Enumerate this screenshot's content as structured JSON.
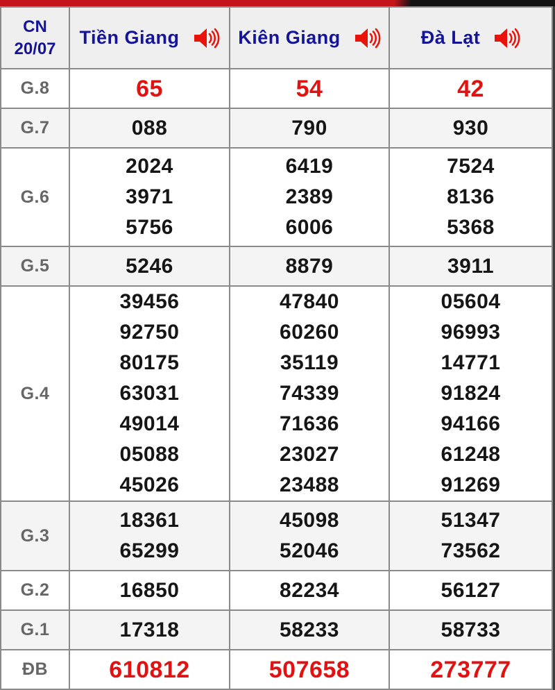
{
  "header": {
    "day": "CN",
    "date": "20/07",
    "columns": [
      {
        "name": "Tiền Giang",
        "icon": "speaker-icon"
      },
      {
        "name": "Kiên Giang",
        "icon": "speaker-icon"
      },
      {
        "name": "Đà Lạt",
        "icon": "speaker-icon"
      }
    ]
  },
  "prizes": [
    {
      "label": "G.8",
      "highlight": true,
      "values": [
        [
          "65"
        ],
        [
          "54"
        ],
        [
          "42"
        ]
      ]
    },
    {
      "label": "G.7",
      "highlight": false,
      "values": [
        [
          "088"
        ],
        [
          "790"
        ],
        [
          "930"
        ]
      ]
    },
    {
      "label": "G.6",
      "highlight": false,
      "values": [
        [
          "2024",
          "3971",
          "5756"
        ],
        [
          "6419",
          "2389",
          "6006"
        ],
        [
          "7524",
          "8136",
          "5368"
        ]
      ]
    },
    {
      "label": "G.5",
      "highlight": false,
      "values": [
        [
          "5246"
        ],
        [
          "8879"
        ],
        [
          "3911"
        ]
      ]
    },
    {
      "label": "G.4",
      "highlight": false,
      "values": [
        [
          "39456",
          "92750",
          "80175",
          "63031",
          "49014",
          "05088",
          "45026"
        ],
        [
          "47840",
          "60260",
          "35119",
          "74339",
          "71636",
          "23027",
          "23488"
        ],
        [
          "05604",
          "96993",
          "14771",
          "91824",
          "94166",
          "61248",
          "91269"
        ]
      ]
    },
    {
      "label": "G.3",
      "highlight": false,
      "values": [
        [
          "18361",
          "65299"
        ],
        [
          "45098",
          "52046"
        ],
        [
          "51347",
          "73562"
        ]
      ]
    },
    {
      "label": "G.2",
      "highlight": false,
      "values": [
        [
          "16850"
        ],
        [
          "82234"
        ],
        [
          "56127"
        ]
      ]
    },
    {
      "label": "G.1",
      "highlight": false,
      "values": [
        [
          "17318"
        ],
        [
          "58233"
        ],
        [
          "58733"
        ]
      ]
    },
    {
      "label": "ĐB",
      "highlight": true,
      "values": [
        [
          "610812"
        ],
        [
          "507658"
        ],
        [
          "273777"
        ]
      ]
    }
  ],
  "colors": {
    "accent_red": "#e11212",
    "header_navy": "#14149b",
    "label_gray": "#666666",
    "row_alt_bg": "#f4f4f4",
    "header_bg": "#efefef",
    "topbar_red": "#c3151b",
    "topbar_black": "#141414",
    "border_gray": "#8a8a8a"
  }
}
